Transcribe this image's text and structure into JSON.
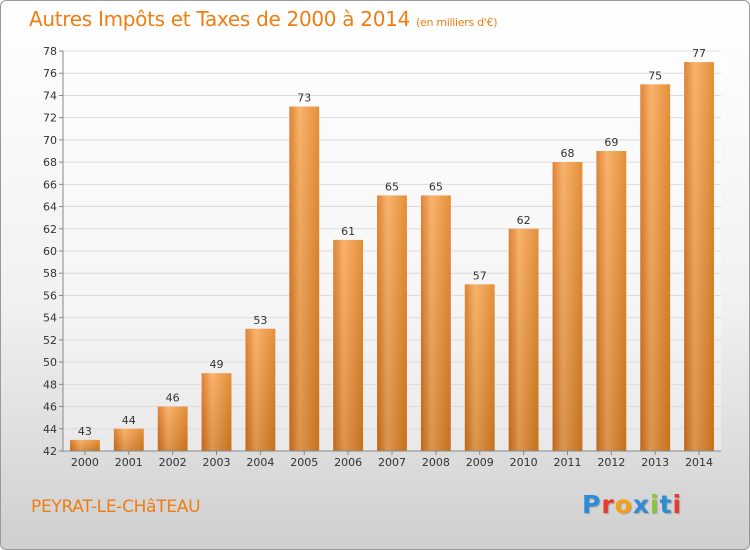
{
  "header": {
    "title": "Autres Impôts et Taxes de 2000 à 2014",
    "unit": "(en milliers d'€)"
  },
  "footer": {
    "location": "PEYRAT-LE-CHâTEAU",
    "logo_text": "Proxiti",
    "logo_colors": [
      "#2e8bd6",
      "#e63b2e",
      "#f5a015",
      "#2e8bd6",
      "#8bc43f",
      "#2e8bd6",
      "#e63b2e"
    ]
  },
  "colors": {
    "title": "#ef7d12",
    "bar_light": "#f7a350",
    "bar_dark": "#d76e15",
    "grid": "#dcdcdc"
  },
  "chart_data": {
    "type": "bar",
    "categories": [
      "2000",
      "2001",
      "2002",
      "2003",
      "2004",
      "2005",
      "2006",
      "2007",
      "2008",
      "2009",
      "2010",
      "2011",
      "2012",
      "2013",
      "2014"
    ],
    "values": [
      43,
      44,
      46,
      49,
      53,
      73,
      61,
      65,
      65,
      57,
      62,
      68,
      69,
      75,
      77
    ],
    "ylim": [
      42,
      78
    ],
    "yticks": [
      42,
      44,
      46,
      48,
      50,
      52,
      54,
      56,
      58,
      60,
      62,
      64,
      66,
      68,
      70,
      72,
      74,
      76,
      78
    ],
    "grid": true,
    "data_labels": true
  }
}
